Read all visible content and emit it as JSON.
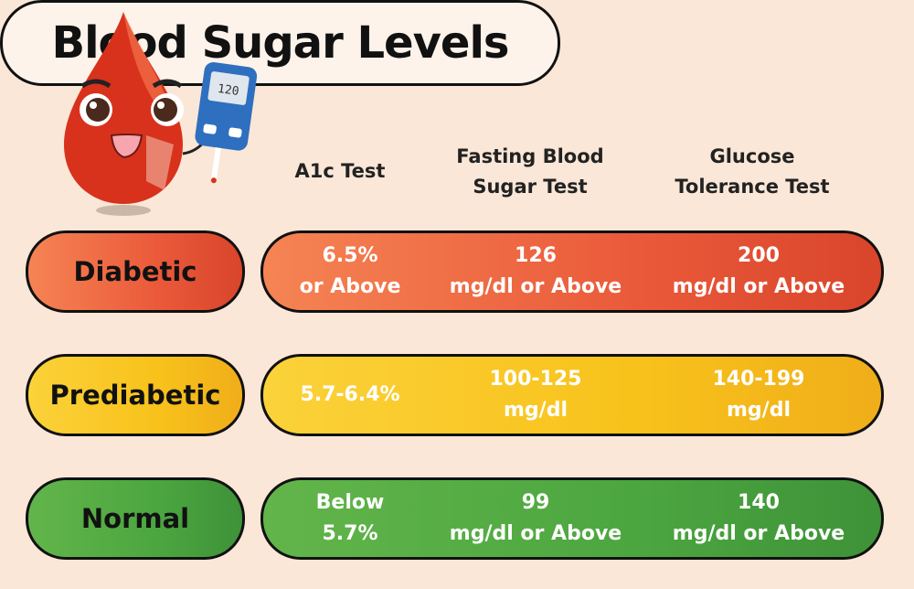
{
  "title": "Blood Sugar Levels",
  "illustration": {
    "meter_reading": "120"
  },
  "columns": [
    {
      "line1": "A1c Test",
      "line2": ""
    },
    {
      "line1": "Fasting Blood",
      "line2": "Sugar Test"
    },
    {
      "line1": "Glucose",
      "line2": "Tolerance Test"
    }
  ],
  "rows": [
    {
      "label": "Diabetic",
      "color": "#ea5a3a",
      "cells": [
        [
          "6.5%",
          "or Above"
        ],
        [
          "126",
          "mg/dl or Above"
        ],
        [
          "200",
          "mg/dl or Above"
        ]
      ]
    },
    {
      "label": "Prediabetic",
      "color": "#f8c21b",
      "cells": [
        [
          "5.7-6.4%",
          ""
        ],
        [
          "100-125",
          "mg/dl"
        ],
        [
          "140-199",
          "mg/dl"
        ]
      ]
    },
    {
      "label": "Normal",
      "color": "#4ca640",
      "cells": [
        [
          "Below",
          "5.7%"
        ],
        [
          "99",
          "mg/dl or Above"
        ],
        [
          "140",
          "mg/dl or Above"
        ]
      ]
    }
  ]
}
